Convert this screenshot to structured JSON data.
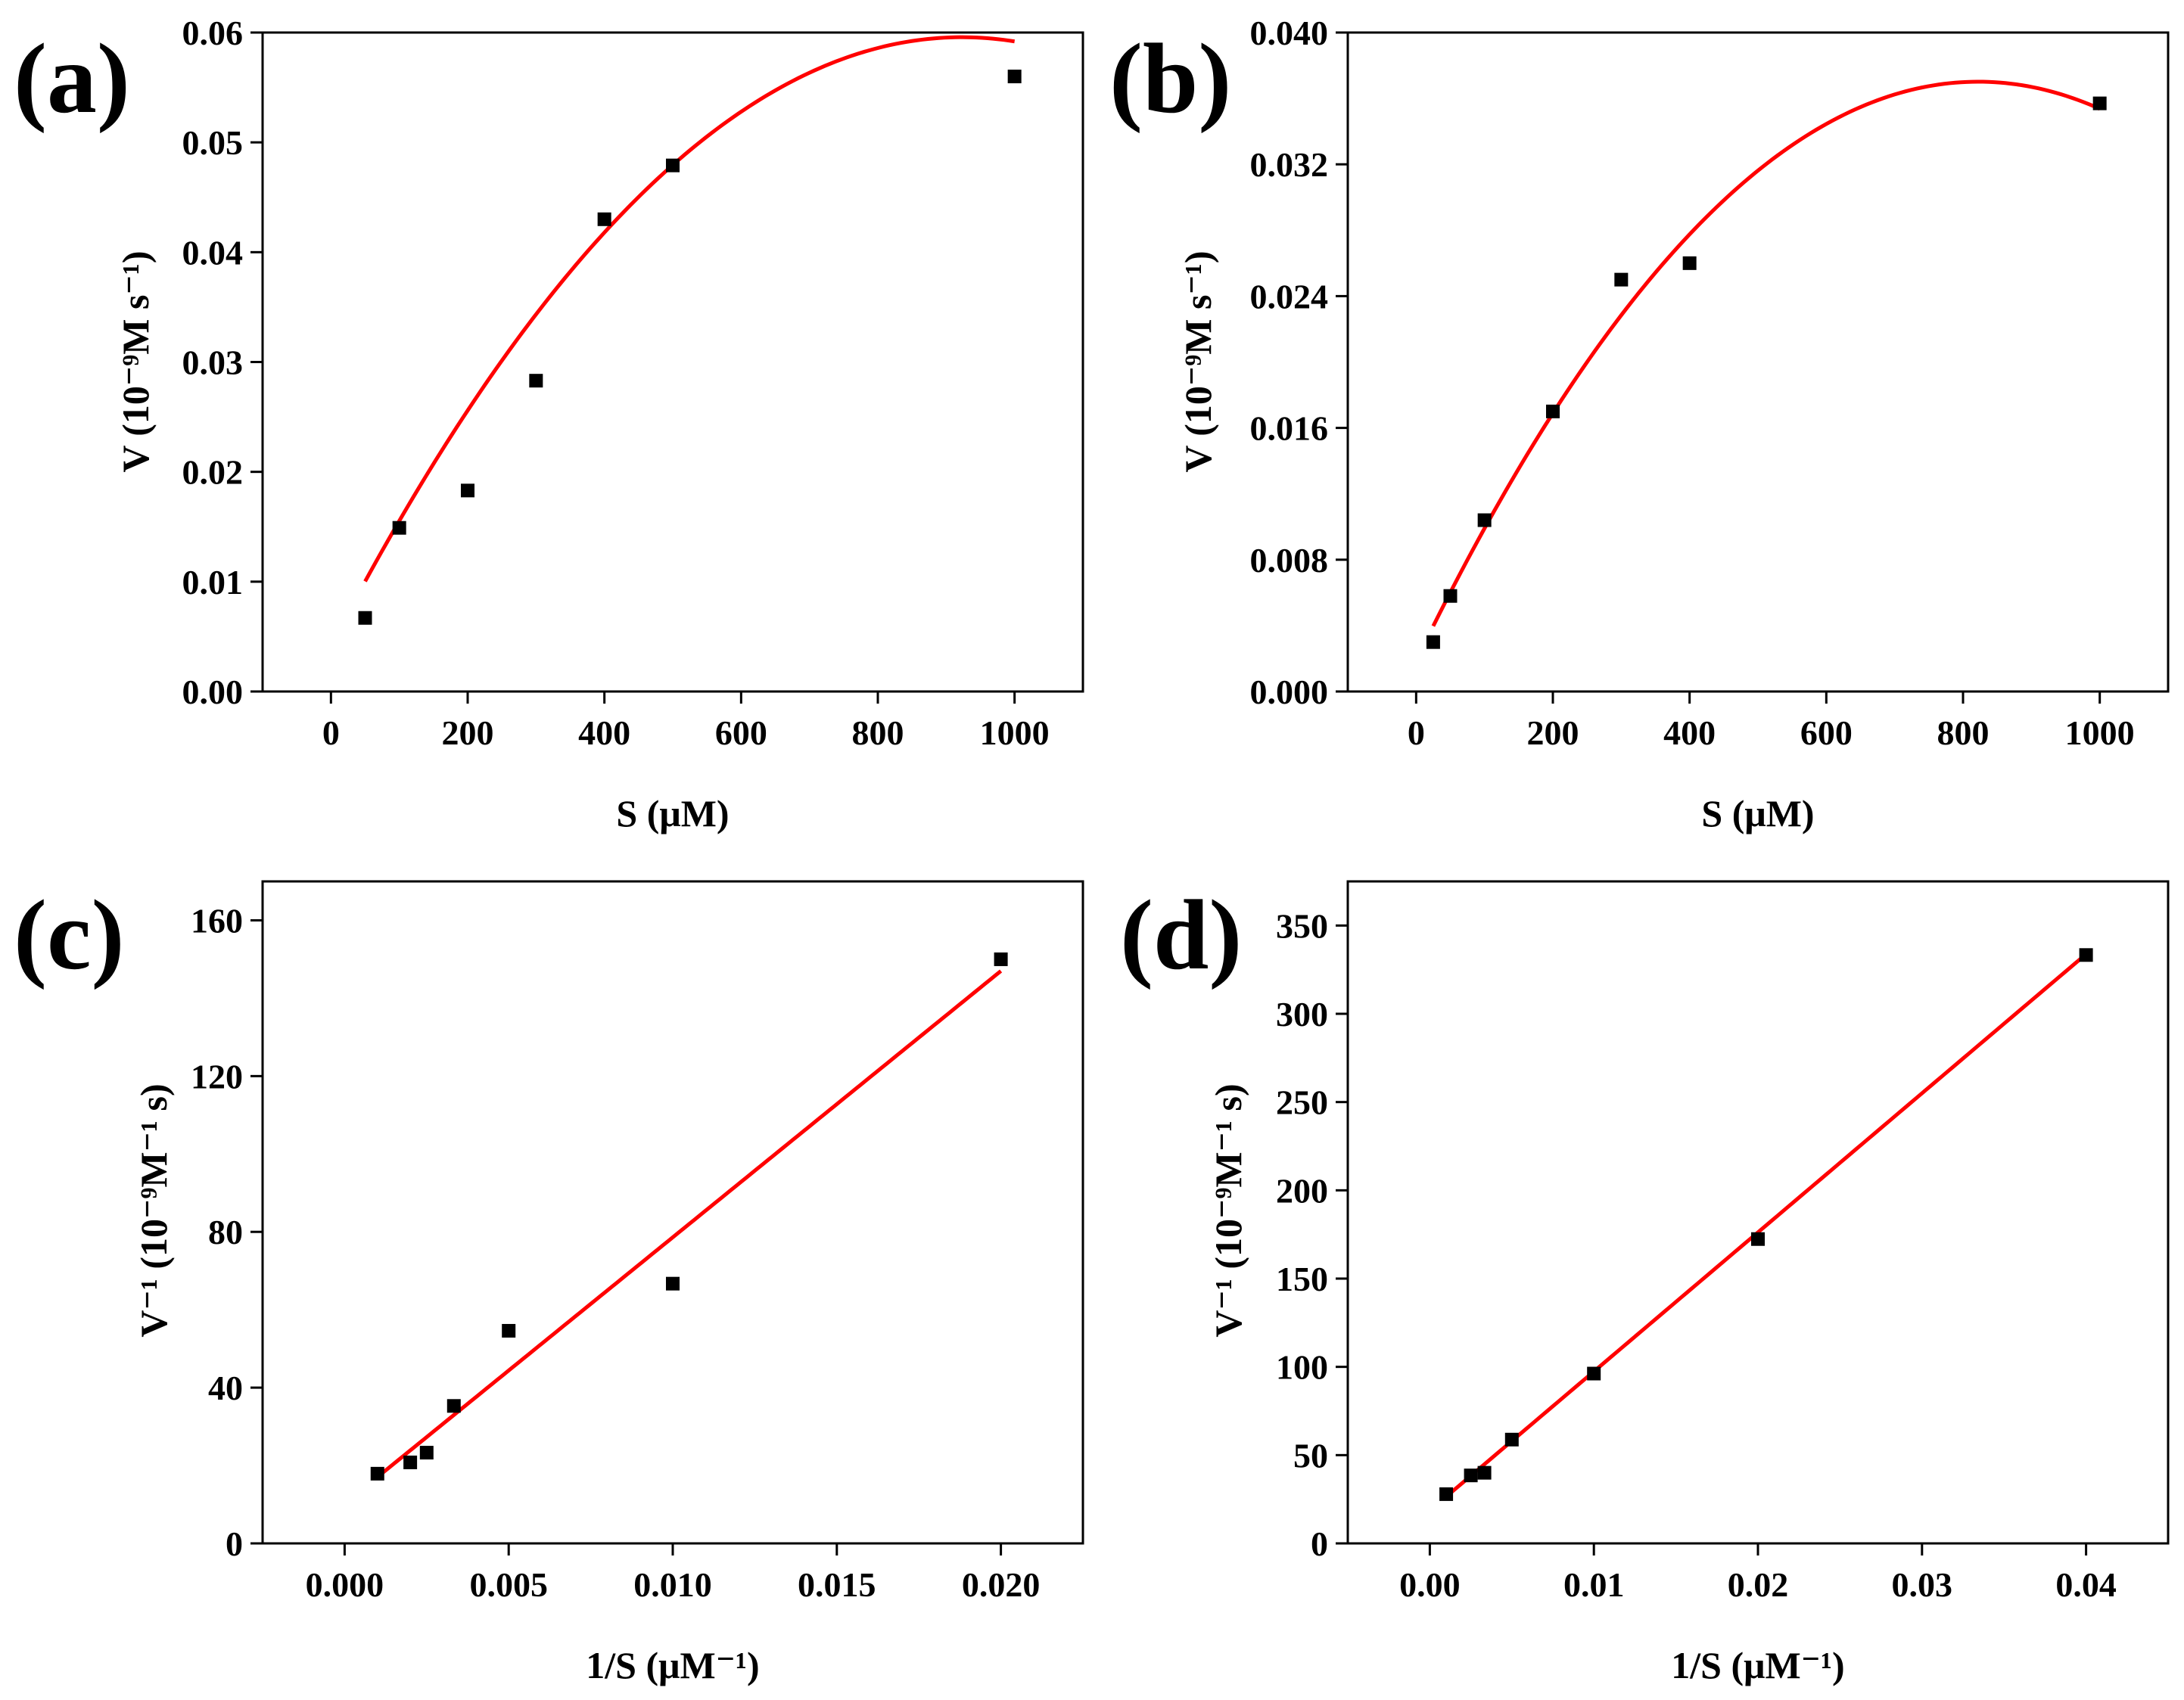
{
  "chart_data": [
    {
      "panel": "(a)",
      "type": "scatter",
      "xlabel": "S (μM)",
      "ylabel": "V (10⁻⁹M s⁻¹)",
      "x_ticks": [
        "0",
        "200",
        "400",
        "600",
        "800",
        "1000"
      ],
      "y_ticks": [
        "0.00",
        "0.01",
        "0.02",
        "0.03",
        "0.04",
        "0.05",
        "0.06"
      ],
      "xlim": [
        -100,
        1100
      ],
      "ylim": [
        0,
        0.06
      ],
      "points": [
        {
          "x": 50,
          "y": 0.0067
        },
        {
          "x": 100,
          "y": 0.0149
        },
        {
          "x": 200,
          "y": 0.0183
        },
        {
          "x": 300,
          "y": 0.0283
        },
        {
          "x": 400,
          "y": 0.043
        },
        {
          "x": 500,
          "y": 0.0479
        },
        {
          "x": 1000,
          "y": 0.056
        }
      ],
      "fit": {
        "kind": "quadratic",
        "x_range": [
          50,
          1000
        ],
        "coeffs": [
          0.00419,
          0.00012,
          -6.5e-08
        ]
      }
    },
    {
      "panel": "(b)",
      "type": "scatter",
      "xlabel": "S (μM)",
      "ylabel": "V (10⁻⁹M s⁻¹)",
      "x_ticks": [
        "0",
        "200",
        "400",
        "600",
        "800",
        "1000"
      ],
      "y_ticks": [
        "0.000",
        "0.008",
        "0.016",
        "0.024",
        "0.032",
        "0.040"
      ],
      "xlim": [
        -100,
        1100
      ],
      "ylim": [
        0,
        0.04
      ],
      "points": [
        {
          "x": 25,
          "y": 0.003
        },
        {
          "x": 50,
          "y": 0.0058
        },
        {
          "x": 100,
          "y": 0.0104
        },
        {
          "x": 200,
          "y": 0.017
        },
        {
          "x": 300,
          "y": 0.025
        },
        {
          "x": 400,
          "y": 0.026
        },
        {
          "x": 1000,
          "y": 0.0357
        }
      ],
      "fit": {
        "kind": "quadratic",
        "x_range": [
          25,
          1000
        ],
        "coeffs": [
          0.00187,
          8.55e-05,
          -5.2e-08
        ]
      }
    },
    {
      "panel": "(c)",
      "type": "scatter",
      "xlabel": "1/S (μM⁻¹)",
      "ylabel": "V⁻¹ (10⁻⁹M⁻¹ s)",
      "x_ticks": [
        "0.000",
        "0.005",
        "0.010",
        "0.015",
        "0.020"
      ],
      "y_ticks": [
        "0",
        "40",
        "80",
        "120",
        "160"
      ],
      "xlim": [
        -0.0025,
        0.0225
      ],
      "ylim": [
        0,
        170
      ],
      "points": [
        {
          "x": 0.001,
          "y": 17.9
        },
        {
          "x": 0.002,
          "y": 20.8
        },
        {
          "x": 0.0025,
          "y": 23.3
        },
        {
          "x": 0.00333,
          "y": 35.3
        },
        {
          "x": 0.005,
          "y": 54.6
        },
        {
          "x": 0.01,
          "y": 66.7
        },
        {
          "x": 0.02,
          "y": 150.0
        }
      ],
      "fit": {
        "kind": "linear",
        "x_range": [
          0.001,
          0.02
        ],
        "coeffs": [
          10.2,
          6840
        ]
      }
    },
    {
      "panel": "(d)",
      "type": "scatter",
      "xlabel": "1/S (μM⁻¹)",
      "ylabel": "V⁻¹ (10⁻⁹M⁻¹ s)",
      "x_ticks": [
        "0.00",
        "0.01",
        "0.02",
        "0.03",
        "0.04"
      ],
      "y_ticks": [
        "0",
        "50",
        "100",
        "150",
        "200",
        "250",
        "300",
        "350"
      ],
      "xlim": [
        -0.005,
        0.045
      ],
      "ylim": [
        0,
        375
      ],
      "points": [
        {
          "x": 0.001,
          "y": 27.9
        },
        {
          "x": 0.0025,
          "y": 38.5
        },
        {
          "x": 0.00333,
          "y": 40.0
        },
        {
          "x": 0.005,
          "y": 58.8
        },
        {
          "x": 0.01,
          "y": 96.2
        },
        {
          "x": 0.02,
          "y": 172.4
        },
        {
          "x": 0.04,
          "y": 333.3
        }
      ],
      "fit": {
        "kind": "linear",
        "x_range": [
          0.001,
          0.04
        ],
        "coeffs": [
          18.6,
          7880
        ]
      }
    }
  ]
}
